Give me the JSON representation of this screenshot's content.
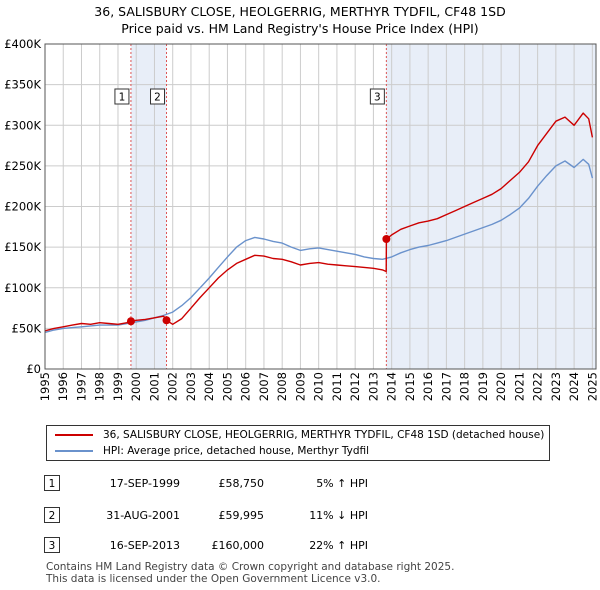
{
  "title_line1": "36, SALISBURY CLOSE, HEOLGERRIG, MERTHYR TYDFIL, CF48 1SD",
  "title_line2": "Price paid vs. HM Land Registry's House Price Index (HPI)",
  "legend": {
    "property_label": "36, SALISBURY CLOSE, HEOLGERRIG, MERTHYR TYDFIL, CF48 1SD (detached house)",
    "hpi_label": "HPI: Average price, detached house, Merthyr Tydfil"
  },
  "colors": {
    "property": "#cc0000",
    "hpi": "#6a92cc",
    "shade": "#e8eef8",
    "grid": "#cccccc",
    "marker_line": "#dd5555"
  },
  "sales": [
    {
      "num": "1",
      "date": "17-SEP-1999",
      "price": "£58,750",
      "hpi": "5% ↑ HPI"
    },
    {
      "num": "2",
      "date": "31-AUG-2001",
      "price": "£59,995",
      "hpi": "11% ↓ HPI"
    },
    {
      "num": "3",
      "date": "16-SEP-2013",
      "price": "£160,000",
      "hpi": "22% ↑ HPI"
    }
  ],
  "footer": {
    "line1": "Contains HM Land Registry data © Crown copyright and database right 2025.",
    "line2": "This data is licensed under the Open Government Licence v3.0."
  },
  "chart_data": {
    "type": "line",
    "title": "Price paid vs. HM Land Registry's House Price Index (HPI)",
    "xlim": [
      1995,
      2025.2
    ],
    "ylim": [
      0,
      400000
    ],
    "x_ticks": [
      1995,
      1996,
      1997,
      1998,
      1999,
      2000,
      2001,
      2002,
      2003,
      2004,
      2005,
      2006,
      2007,
      2008,
      2009,
      2010,
      2011,
      2012,
      2013,
      2014,
      2015,
      2016,
      2017,
      2018,
      2019,
      2020,
      2021,
      2022,
      2023,
      2024,
      2025
    ],
    "y_ticks": [
      {
        "value": 0,
        "label": "£0"
      },
      {
        "value": 50000,
        "label": "£50K"
      },
      {
        "value": 100000,
        "label": "£100K"
      },
      {
        "value": 150000,
        "label": "£150K"
      },
      {
        "value": 200000,
        "label": "£200K"
      },
      {
        "value": 250000,
        "label": "£250K"
      },
      {
        "value": 300000,
        "label": "£300K"
      },
      {
        "value": 350000,
        "label": "£350K"
      },
      {
        "value": 400000,
        "label": "£400K"
      }
    ],
    "grid": true,
    "shaded_periods": [
      [
        1999.71,
        2001.66
      ],
      [
        2013.71,
        2025.2
      ]
    ],
    "sale_markers": [
      {
        "label": "1",
        "x": 1999.71,
        "y": 58750
      },
      {
        "label": "2",
        "x": 2001.66,
        "y": 59995
      },
      {
        "label": "3",
        "x": 2013.71,
        "y": 160000
      }
    ],
    "series": [
      {
        "name": "36, SALISBURY CLOSE, HEOLGERRIG, MERTHYR TYDFIL, CF48 1SD (detached house)",
        "x": [
          1995,
          1995.5,
          1996,
          1996.5,
          1997,
          1997.5,
          1998,
          1998.5,
          1999,
          1999.5,
          1999.71,
          2000,
          2000.5,
          2001,
          2001.5,
          2001.66,
          2002,
          2002.5,
          2003,
          2003.5,
          2004,
          2004.5,
          2005,
          2005.5,
          2006,
          2006.5,
          2007,
          2007.5,
          2008,
          2008.5,
          2009,
          2009.5,
          2010,
          2010.5,
          2011,
          2011.5,
          2012,
          2012.5,
          2013,
          2013.5,
          2013.7,
          2013.71,
          2014,
          2014.5,
          2015,
          2015.5,
          2016,
          2016.5,
          2017,
          2017.5,
          2018,
          2018.5,
          2019,
          2019.5,
          2020,
          2020.5,
          2021,
          2021.5,
          2022,
          2022.5,
          2023,
          2023.5,
          2024,
          2024.5,
          2024.8,
          2025
        ],
        "values": [
          47000,
          50000,
          52000,
          54000,
          56000,
          55000,
          57000,
          56000,
          55000,
          57000,
          58750,
          60000,
          61000,
          63000,
          65000,
          59995,
          55000,
          62000,
          75000,
          88000,
          100000,
          112000,
          122000,
          130000,
          135000,
          140000,
          139000,
          136000,
          135000,
          132000,
          128000,
          130000,
          131000,
          129000,
          128000,
          127000,
          126000,
          125000,
          124000,
          122000,
          120000,
          160000,
          165000,
          172000,
          176000,
          180000,
          182000,
          185000,
          190000,
          195000,
          200000,
          205000,
          210000,
          215000,
          222000,
          232000,
          242000,
          255000,
          275000,
          290000,
          305000,
          310000,
          300000,
          315000,
          308000,
          285000
        ]
      },
      {
        "name": "HPI: Average price, detached house, Merthyr Tydfil",
        "x": [
          1995,
          1995.5,
          1996,
          1996.5,
          1997,
          1997.5,
          1998,
          1998.5,
          1999,
          1999.5,
          2000,
          2000.5,
          2001,
          2001.5,
          2002,
          2002.5,
          2003,
          2003.5,
          2004,
          2004.5,
          2005,
          2005.5,
          2006,
          2006.5,
          2007,
          2007.5,
          2008,
          2008.5,
          2009,
          2009.5,
          2010,
          2010.5,
          2011,
          2011.5,
          2012,
          2012.5,
          2013,
          2013.5,
          2014,
          2014.5,
          2015,
          2015.5,
          2016,
          2016.5,
          2017,
          2017.5,
          2018,
          2018.5,
          2019,
          2019.5,
          2020,
          2020.5,
          2021,
          2021.5,
          2022,
          2022.5,
          2023,
          2023.5,
          2024,
          2024.5,
          2024.8,
          2025
        ],
        "values": [
          45000,
          48000,
          50000,
          51000,
          52000,
          53000,
          54000,
          54000,
          54000,
          56000,
          58000,
          60000,
          63000,
          66000,
          70000,
          78000,
          88000,
          100000,
          112000,
          125000,
          138000,
          150000,
          158000,
          162000,
          160000,
          157000,
          155000,
          150000,
          146000,
          148000,
          149000,
          147000,
          145000,
          143000,
          141000,
          138000,
          136000,
          135000,
          138000,
          143000,
          147000,
          150000,
          152000,
          155000,
          158000,
          162000,
          166000,
          170000,
          174000,
          178000,
          183000,
          190000,
          198000,
          210000,
          225000,
          238000,
          250000,
          256000,
          248000,
          258000,
          252000,
          235000
        ]
      }
    ]
  }
}
